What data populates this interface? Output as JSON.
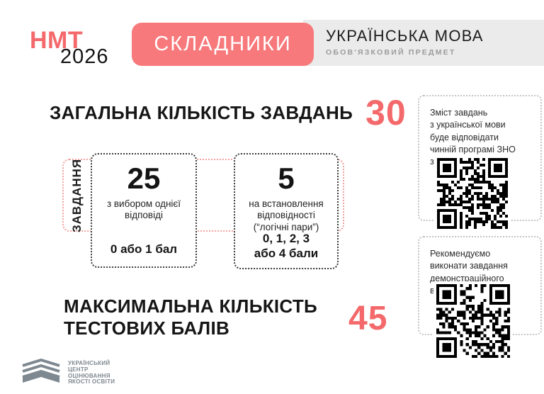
{
  "colors": {
    "accent_number": "#F4696B",
    "badge_bg": "#F7797B",
    "header_bar_bg": "#EBEBEB",
    "text_dark": "#161616",
    "muted_text": "#9B9B9B",
    "org_gray": "#7E8890",
    "coral_dotted_border": "#F2A3A0",
    "black_dotted_border": "#3C3C3C",
    "note_dotted_border": "#C4C4C4"
  },
  "header": {
    "logo_title": "НМТ",
    "logo_year": "2026",
    "badge": "СКЛАДНИКИ",
    "subject": "УКРАЇНСЬКА МОВА",
    "subject_note": "ОБОВ'ЯЗКОВИЙ ПРЕДМЕТ"
  },
  "total": {
    "label": "ЗАГАЛЬНА КІЛЬКІСТЬ ЗАВДАНЬ",
    "value": "30"
  },
  "diagram": {
    "axis_label": "ЗАВДАННЯ",
    "boxes": [
      {
        "count": "25",
        "desc_lines": [
          "з вибором однієї",
          "відповіді",
          ""
        ],
        "score_lines": [
          "0 або 1 бал",
          ""
        ]
      },
      {
        "count": "5",
        "desc_lines": [
          "на встановлення",
          "відповідності",
          "(“логічні пари”)"
        ],
        "score_lines": [
          "0, 1, 2, 3",
          "або 4 бали"
        ]
      }
    ]
  },
  "max": {
    "label_lines": [
      "МАКСИМАЛЬНА КІЛЬКІСТЬ",
      "ТЕСТОВИХ БАЛІВ"
    ],
    "value": "45"
  },
  "notes": [
    {
      "lines": [
        "Зміст завдань",
        "з української мови",
        "буде відповідати",
        "чинній програмі ЗНО",
        "з української мови."
      ]
    },
    {
      "lines": [
        "Рекомендуємо",
        "виконати завдання",
        "демонстраційного",
        "варіанта",
        ""
      ]
    }
  ],
  "footer": {
    "org_lines": [
      "УКРАЇНСЬКИЙ",
      "ЦЕНТР",
      "ОЦІНЮВАННЯ",
      "ЯКОСТІ ОСВІТИ"
    ]
  }
}
